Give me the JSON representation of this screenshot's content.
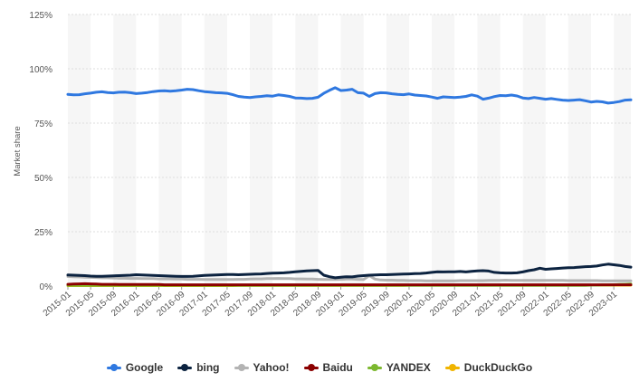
{
  "chart_data": {
    "type": "line",
    "title": "",
    "ylabel": "Market share",
    "xlabel": "",
    "ylim": [
      0,
      125
    ],
    "y_ticks": [
      "0%",
      "25%",
      "50%",
      "75%",
      "100%",
      "125%"
    ],
    "x_tick_labels": [
      "2015-01",
      "2015-05",
      "2015-09",
      "2016-01",
      "2016-05",
      "2016-09",
      "2017-01",
      "2017-05",
      "2017-09",
      "2018-01",
      "2018-05",
      "2018-09",
      "2019-01",
      "2019-05",
      "2019-09",
      "2020-01",
      "2020-05",
      "2020-09",
      "2021-01",
      "2021-05",
      "2021-09",
      "2022-01",
      "2022-05",
      "2022-09",
      "2023-01"
    ],
    "x_start": "2015-01",
    "x_end": "2023-03",
    "grid": true,
    "legend_position": "bottom",
    "series": [
      {
        "name": "Google",
        "color": "#2f78e0",
        "values": [
          88.2,
          88.0,
          88.1,
          88.5,
          88.8,
          89.2,
          89.4,
          89.1,
          88.9,
          89.2,
          89.3,
          89.0,
          88.6,
          88.8,
          89.1,
          89.5,
          89.8,
          89.9,
          89.7,
          89.9,
          90.2,
          90.6,
          90.4,
          89.9,
          89.5,
          89.3,
          89.0,
          88.9,
          88.7,
          88.1,
          87.3,
          87.0,
          86.8,
          87.1,
          87.3,
          87.6,
          87.4,
          88.0,
          87.7,
          87.3,
          86.6,
          86.5,
          86.3,
          86.4,
          86.9,
          88.7,
          90.1,
          91.3,
          90.0,
          90.2,
          90.6,
          89.0,
          88.8,
          87.3,
          88.6,
          89.0,
          88.9,
          88.5,
          88.2,
          88.1,
          88.4,
          87.9,
          87.7,
          87.5,
          87.0,
          86.4,
          87.1,
          86.9,
          86.8,
          87.0,
          87.3,
          88.0,
          87.4,
          86.0,
          86.5,
          87.2,
          87.7,
          87.6,
          87.9,
          87.5,
          86.6,
          86.3,
          86.8,
          86.4,
          86.0,
          86.3,
          85.9,
          85.6,
          85.4,
          85.6,
          85.8,
          85.3,
          84.7,
          85.0,
          84.8,
          84.2,
          84.5,
          84.9,
          85.6,
          85.7
        ]
      },
      {
        "name": "bing",
        "color": "#0c2340",
        "values": [
          5.1,
          5.0,
          4.9,
          4.8,
          4.6,
          4.5,
          4.5,
          4.6,
          4.7,
          4.8,
          4.9,
          5.0,
          5.2,
          5.1,
          5.0,
          4.9,
          4.8,
          4.7,
          4.6,
          4.5,
          4.4,
          4.4,
          4.5,
          4.7,
          4.9,
          5.0,
          5.1,
          5.2,
          5.3,
          5.3,
          5.2,
          5.3,
          5.4,
          5.5,
          5.6,
          5.8,
          5.9,
          6.0,
          6.1,
          6.3,
          6.6,
          6.8,
          7.0,
          7.1,
          7.2,
          5.0,
          4.3,
          3.8,
          4.1,
          4.3,
          4.2,
          4.6,
          4.8,
          5.0,
          5.1,
          5.2,
          5.2,
          5.3,
          5.4,
          5.5,
          5.6,
          5.7,
          5.8,
          6.0,
          6.3,
          6.6,
          6.5,
          6.6,
          6.6,
          6.7,
          6.5,
          6.8,
          7.0,
          7.1,
          6.9,
          6.3,
          6.1,
          6.0,
          6.0,
          6.1,
          6.5,
          7.1,
          7.5,
          8.2,
          7.7,
          7.9,
          8.1,
          8.3,
          8.4,
          8.5,
          8.7,
          8.9,
          9.0,
          9.2,
          9.7,
          10.1,
          9.8,
          9.5,
          9.0,
          8.7
        ]
      },
      {
        "name": "Yahoo!",
        "color": "#b3b3b3",
        "values": [
          4.4,
          4.3,
          4.2,
          4.1,
          4.0,
          3.9,
          3.8,
          3.8,
          3.7,
          3.6,
          3.6,
          3.5,
          3.5,
          3.4,
          3.4,
          3.4,
          3.3,
          3.3,
          3.3,
          3.2,
          3.2,
          3.1,
          3.1,
          3.1,
          3.0,
          3.0,
          3.0,
          3.0,
          3.0,
          3.0,
          3.1,
          3.1,
          3.2,
          3.3,
          3.3,
          3.4,
          3.4,
          3.5,
          3.4,
          3.4,
          3.3,
          3.3,
          3.2,
          3.2,
          3.1,
          3.0,
          3.0,
          3.0,
          3.1,
          3.2,
          3.2,
          3.1,
          3.0,
          4.8,
          3.2,
          2.8,
          2.7,
          2.7,
          2.6,
          2.6,
          2.5,
          2.5,
          2.5,
          2.4,
          2.4,
          2.4,
          2.4,
          2.4,
          2.4,
          2.5,
          2.5,
          2.5,
          2.5,
          2.5,
          2.6,
          2.6,
          2.6,
          2.7,
          2.6,
          2.6,
          2.6,
          2.6,
          2.6,
          2.6,
          2.6,
          2.6,
          2.6,
          2.6,
          2.5,
          2.5,
          2.5,
          2.5,
          2.5,
          2.5,
          2.4,
          2.4,
          2.4,
          2.4,
          2.4,
          2.4
        ]
      },
      {
        "name": "Baidu",
        "color": "#8b0000",
        "values": [
          0.8,
          0.9,
          1.0,
          1.1,
          1.0,
          0.9,
          0.8,
          0.8,
          0.8,
          0.7,
          0.7,
          0.7,
          0.7,
          0.7,
          0.7,
          0.7,
          0.7,
          0.6,
          0.6,
          0.6,
          0.6,
          0.6,
          0.6,
          0.6,
          0.6,
          0.6,
          0.6,
          0.6,
          0.6,
          0.6,
          0.6,
          0.6,
          0.6,
          0.6,
          0.6,
          0.6,
          0.6,
          0.6,
          0.6,
          0.6,
          0.6,
          0.6,
          0.6,
          0.6,
          0.6,
          0.6,
          0.6,
          0.6,
          0.6,
          0.6,
          0.6,
          0.6,
          0.6,
          0.6,
          0.6,
          0.6,
          0.6,
          0.6,
          0.6,
          0.6,
          0.6,
          0.6,
          0.6,
          0.6,
          0.6,
          0.6,
          0.6,
          0.6,
          0.6,
          0.6,
          0.6,
          0.6,
          0.6,
          0.6,
          0.6,
          0.6,
          0.6,
          0.6,
          0.6,
          0.6,
          0.6,
          0.6,
          0.6,
          0.6,
          0.6,
          0.6,
          0.6,
          0.6,
          0.6,
          0.6,
          0.6,
          0.6,
          0.6,
          0.6,
          0.6,
          0.6,
          0.6,
          0.6,
          0.6,
          0.6
        ]
      },
      {
        "name": "YANDEX",
        "color": "#7cb82f",
        "values": [
          0.3,
          0.3,
          0.3,
          0.3,
          0.3,
          0.3,
          0.3,
          0.3,
          0.3,
          0.3,
          0.3,
          0.3,
          0.3,
          0.3,
          0.3,
          0.3,
          0.3,
          0.3,
          0.3,
          0.3,
          0.3,
          0.3,
          0.3,
          0.3,
          0.3,
          0.3,
          0.3,
          0.3,
          0.3,
          0.3,
          0.3,
          0.3,
          0.3,
          0.3,
          0.3,
          0.3,
          0.3,
          0.3,
          0.3,
          0.3,
          0.3,
          0.3,
          0.3,
          0.3,
          0.3,
          0.3,
          0.3,
          0.3,
          0.3,
          0.3,
          0.3,
          0.3,
          0.3,
          0.3,
          0.3,
          0.3,
          0.3,
          0.3,
          0.3,
          0.3,
          0.3,
          0.3,
          0.3,
          0.3,
          0.3,
          0.3,
          0.3,
          0.3,
          0.3,
          0.3,
          0.3,
          0.3,
          0.3,
          0.3,
          0.3,
          0.3,
          0.3,
          0.3,
          0.3,
          0.3,
          0.3,
          0.3,
          0.3,
          0.3,
          0.3,
          0.3,
          0.3,
          0.3,
          0.3,
          0.3,
          0.3,
          0.3,
          0.4,
          0.4,
          0.5,
          0.5,
          0.6,
          0.7,
          0.8,
          0.9
        ]
      },
      {
        "name": "DuckDuckGo",
        "color": "#f0b400",
        "values": [
          0.2,
          0.2,
          0.2,
          0.2,
          0.2,
          0.2,
          0.2,
          0.2,
          0.2,
          0.2,
          0.2,
          0.2,
          0.2,
          0.2,
          0.2,
          0.2,
          0.2,
          0.2,
          0.2,
          0.2,
          0.2,
          0.2,
          0.2,
          0.2,
          0.2,
          0.2,
          0.2,
          0.2,
          0.2,
          0.2,
          0.3,
          0.3,
          0.3,
          0.3,
          0.3,
          0.3,
          0.3,
          0.3,
          0.3,
          0.3,
          0.3,
          0.3,
          0.3,
          0.3,
          0.3,
          0.3,
          0.3,
          0.3,
          0.3,
          0.3,
          0.3,
          0.3,
          0.3,
          0.3,
          0.3,
          0.3,
          0.3,
          0.3,
          0.3,
          0.3,
          0.4,
          0.4,
          0.4,
          0.4,
          0.4,
          0.4,
          0.4,
          0.4,
          0.4,
          0.4,
          0.4,
          0.4,
          0.4,
          0.4,
          0.4,
          0.4,
          0.4,
          0.4,
          0.4,
          0.4,
          0.4,
          0.4,
          0.4,
          0.4,
          0.4,
          0.4,
          0.4,
          0.4,
          0.4,
          0.4,
          0.4,
          0.4,
          0.4,
          0.4,
          0.4,
          0.4,
          0.4,
          0.4,
          0.4,
          0.4
        ]
      }
    ]
  }
}
